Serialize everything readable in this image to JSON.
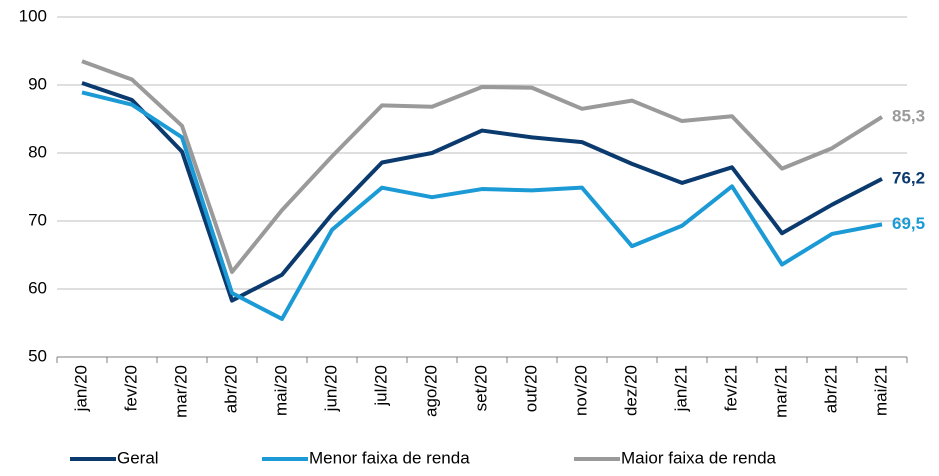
{
  "chart_data": {
    "type": "line",
    "categories": [
      "jan/20",
      "fev/20",
      "mar/20",
      "abr/20",
      "mai/20",
      "jun/20",
      "jul/20",
      "ago/20",
      "set/20",
      "out/20",
      "nov/20",
      "dez/20",
      "jan/21",
      "fev/21",
      "mar/21",
      "abr/21",
      "mai/21"
    ],
    "series": [
      {
        "name": "Geral",
        "color": "#0b3a6e",
        "values": [
          90.3,
          87.8,
          80.2,
          58.3,
          62.1,
          71,
          78.6,
          80,
          83.3,
          82.3,
          81.6,
          78.4,
          75.6,
          77.9,
          68.2,
          72.4,
          76.2
        ],
        "value_labels": [
          null,
          null,
          null,
          null,
          null,
          null,
          null,
          null,
          null,
          null,
          null,
          null,
          null,
          null,
          null,
          null,
          "76,2"
        ]
      },
      {
        "name": "Menor faixa de renda",
        "color": "#1b9ad6",
        "values": [
          88.9,
          87.1,
          82.3,
          59.4,
          55.6,
          68.7,
          74.9,
          73.5,
          74.7,
          74.5,
          74.9,
          66.3,
          69.3,
          75.1,
          63.6,
          68.1,
          69.5
        ],
        "value_labels": [
          null,
          null,
          null,
          null,
          null,
          null,
          null,
          null,
          null,
          null,
          null,
          null,
          null,
          null,
          null,
          null,
          "69,5"
        ]
      },
      {
        "name": "Maior faixa de renda",
        "color": "#9a9a9a",
        "values": [
          93.5,
          90.8,
          84,
          62.5,
          71.6,
          79.5,
          87,
          86.8,
          89.7,
          89.6,
          86.5,
          87.7,
          84.7,
          85.4,
          77.7,
          80.7,
          85.3
        ],
        "value_labels": [
          null,
          null,
          null,
          null,
          null,
          null,
          null,
          null,
          null,
          null,
          null,
          null,
          null,
          null,
          null,
          null,
          "85,3"
        ]
      }
    ],
    "ylim": [
      50,
      100
    ],
    "yticks": [
      50,
      60,
      70,
      80,
      90,
      100
    ],
    "grid": true,
    "legend": "bottom"
  }
}
